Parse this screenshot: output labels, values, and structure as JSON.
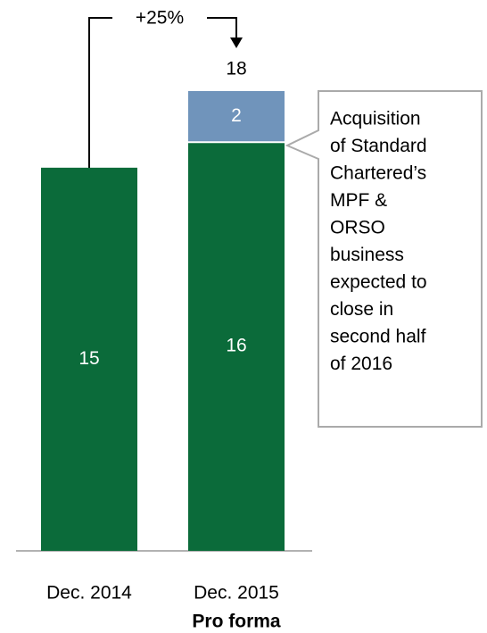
{
  "chart_data": {
    "type": "bar",
    "stacked": true,
    "categories": [
      "Dec. 2014",
      "Dec. 2015"
    ],
    "category_sublabels": [
      null,
      "Pro forma"
    ],
    "series": [
      {
        "name": null,
        "color": "#0b6b3a",
        "values": [
          15,
          16
        ]
      },
      {
        "name": null,
        "color": "#7094bb",
        "values": [
          null,
          2
        ]
      }
    ],
    "total": {
      "category": 1,
      "value": 18
    },
    "growth_annotation": "+25%",
    "callout_lines": [
      "Acquisition",
      "of Standard",
      "Chartered’s",
      "MPF &",
      "ORSO",
      "business",
      "expected to",
      "close in",
      "second half",
      "of 2016"
    ]
  }
}
